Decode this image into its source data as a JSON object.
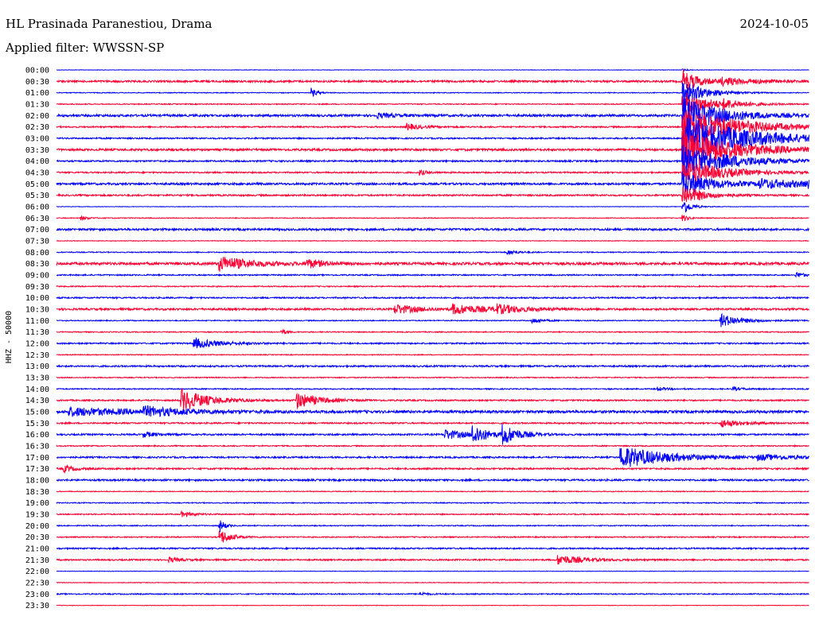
{
  "header": {
    "station": "HL Prasinada Paranestiou, Drama",
    "date": "2024-10-05",
    "filter": "Applied filter: WWSSN-SP"
  },
  "chart_data": {
    "type": "helicorder",
    "ylabel": "HHZ - 50000",
    "colors": [
      "#0000ff",
      "#ff0033"
    ],
    "row_labels": [
      "00:00",
      "00:30",
      "01:00",
      "01:30",
      "02:00",
      "02:30",
      "03:00",
      "03:30",
      "04:00",
      "04:30",
      "05:00",
      "05:30",
      "06:00",
      "06:30",
      "07:00",
      "07:30",
      "08:00",
      "08:30",
      "09:00",
      "09:30",
      "10:00",
      "10:30",
      "11:00",
      "11:30",
      "12:00",
      "12:30",
      "13:00",
      "13:30",
      "14:00",
      "14:30",
      "15:00",
      "15:30",
      "16:00",
      "16:30",
      "17:00",
      "17:30",
      "18:00",
      "18:30",
      "19:00",
      "19:30",
      "20:00",
      "20:30",
      "21:00",
      "21:30",
      "22:00",
      "22:30",
      "23:00",
      "23:30"
    ],
    "row_noise": [
      0.3,
      1.2,
      0.5,
      0.6,
      1.4,
      0.9,
      0.9,
      1.3,
      1.0,
      0.9,
      1.3,
      1.0,
      0.3,
      0.5,
      1.3,
      0.4,
      0.6,
      1.6,
      0.8,
      0.7,
      0.9,
      1.2,
      0.6,
      0.6,
      0.9,
      0.5,
      1.0,
      0.6,
      0.7,
      0.9,
      1.6,
      0.9,
      1.0,
      0.7,
      1.0,
      1.0,
      1.1,
      0.5,
      0.6,
      0.7,
      0.6,
      0.7,
      0.9,
      0.9,
      0.3,
      0.4,
      0.7,
      0.3
    ],
    "events": [
      {
        "row": 0,
        "minute": 25.0,
        "amp": 1.0,
        "dur": 0.2
      },
      {
        "row": 1,
        "minute": 25.0,
        "amp": 14,
        "dur": 0.6
      },
      {
        "row": 1,
        "minute": 26.5,
        "amp": 4,
        "dur": 1.5
      },
      {
        "row": 2,
        "minute": 10.2,
        "amp": 5,
        "dur": 0.2
      },
      {
        "row": 2,
        "minute": 25.0,
        "amp": 16,
        "dur": 0.8
      },
      {
        "row": 3,
        "minute": 25.0,
        "amp": 16,
        "dur": 1.0
      },
      {
        "row": 3,
        "minute": 26.6,
        "amp": 4,
        "dur": 0.8
      },
      {
        "row": 4,
        "minute": 12.8,
        "amp": 2.5,
        "dur": 0.8
      },
      {
        "row": 4,
        "minute": 25.0,
        "amp": 22,
        "dur": 1.5
      },
      {
        "row": 5,
        "minute": 14.0,
        "amp": 4,
        "dur": 0.5
      },
      {
        "row": 5,
        "minute": 25.0,
        "amp": 25,
        "dur": 2.0
      },
      {
        "row": 6,
        "minute": 25.0,
        "amp": 28,
        "dur": 2.5
      },
      {
        "row": 7,
        "minute": 25.0,
        "amp": 24,
        "dur": 2.0
      },
      {
        "row": 8,
        "minute": 25.0,
        "amp": 20,
        "dur": 1.8
      },
      {
        "row": 9,
        "minute": 25.0,
        "amp": 16,
        "dur": 1.5
      },
      {
        "row": 9,
        "minute": 14.5,
        "amp": 3,
        "dur": 0.3
      },
      {
        "row": 10,
        "minute": 25.0,
        "amp": 14,
        "dur": 1.2
      },
      {
        "row": 10,
        "minute": 28.0,
        "amp": 5,
        "dur": 2.5
      },
      {
        "row": 10,
        "minute": 30.0,
        "amp": 3,
        "dur": 1.0
      },
      {
        "row": 11,
        "minute": 25.0,
        "amp": 12,
        "dur": 0.8
      },
      {
        "row": 11,
        "minute": 31.0,
        "amp": 3,
        "dur": 0.4
      },
      {
        "row": 12,
        "minute": 25.0,
        "amp": 10,
        "dur": 0.3
      },
      {
        "row": 13,
        "minute": 1.0,
        "amp": 2,
        "dur": 0.3
      },
      {
        "row": 13,
        "minute": 25.0,
        "amp": 4,
        "dur": 0.2
      },
      {
        "row": 16,
        "minute": 18.0,
        "amp": 3,
        "dur": 0.4
      },
      {
        "row": 17,
        "minute": 6.5,
        "amp": 9,
        "dur": 1.2
      },
      {
        "row": 17,
        "minute": 10.0,
        "amp": 5,
        "dur": 0.6
      },
      {
        "row": 18,
        "minute": 29.5,
        "amp": 3,
        "dur": 0.4
      },
      {
        "row": 21,
        "minute": 13.5,
        "amp": 6,
        "dur": 0.9
      },
      {
        "row": 21,
        "minute": 15.8,
        "amp": 6,
        "dur": 1.3
      },
      {
        "row": 21,
        "minute": 17.5,
        "amp": 5,
        "dur": 1.0
      },
      {
        "row": 22,
        "minute": 19.0,
        "amp": 3,
        "dur": 0.4
      },
      {
        "row": 22,
        "minute": 26.5,
        "amp": 8,
        "dur": 0.8
      },
      {
        "row": 23,
        "minute": 9.0,
        "amp": 3,
        "dur": 0.2
      },
      {
        "row": 24,
        "minute": 5.5,
        "amp": 6,
        "dur": 1.0
      },
      {
        "row": 28,
        "minute": 24.0,
        "amp": 2,
        "dur": 0.4
      },
      {
        "row": 28,
        "minute": 27.0,
        "amp": 2,
        "dur": 0.4
      },
      {
        "row": 29,
        "minute": 5.0,
        "amp": 14,
        "dur": 1.0
      },
      {
        "row": 29,
        "minute": 9.6,
        "amp": 10,
        "dur": 0.8
      },
      {
        "row": 29,
        "minute": 31.0,
        "amp": 5,
        "dur": 0.5
      },
      {
        "row": 30,
        "minute": 0.5,
        "amp": 5,
        "dur": 2.5
      },
      {
        "row": 30,
        "minute": 3.5,
        "amp": 5,
        "dur": 1.5
      },
      {
        "row": 31,
        "minute": 26.5,
        "amp": 5,
        "dur": 0.8
      },
      {
        "row": 32,
        "minute": 15.5,
        "amp": 6,
        "dur": 0.9
      },
      {
        "row": 32,
        "minute": 16.6,
        "amp": 12,
        "dur": 0.5
      },
      {
        "row": 32,
        "minute": 17.8,
        "amp": 12,
        "dur": 0.6
      },
      {
        "row": 32,
        "minute": 3.5,
        "amp": 3,
        "dur": 0.5
      },
      {
        "row": 34,
        "minute": 22.5,
        "amp": 14,
        "dur": 1.8
      },
      {
        "row": 34,
        "minute": 28.0,
        "amp": 3,
        "dur": 1.5
      },
      {
        "row": 34,
        "minute": 32.5,
        "amp": 6,
        "dur": 0.3
      },
      {
        "row": 35,
        "minute": 0.3,
        "amp": 4,
        "dur": 0.4
      },
      {
        "row": 39,
        "minute": 5.0,
        "amp": 3,
        "dur": 0.5
      },
      {
        "row": 40,
        "minute": 6.5,
        "amp": 8,
        "dur": 0.2
      },
      {
        "row": 41,
        "minute": 6.5,
        "amp": 10,
        "dur": 0.4
      },
      {
        "row": 43,
        "minute": 4.5,
        "amp": 3,
        "dur": 0.4
      },
      {
        "row": 43,
        "minute": 20.0,
        "amp": 6,
        "dur": 1.0
      },
      {
        "row": 46,
        "minute": 14.5,
        "amp": 2,
        "dur": 0.3
      }
    ]
  }
}
